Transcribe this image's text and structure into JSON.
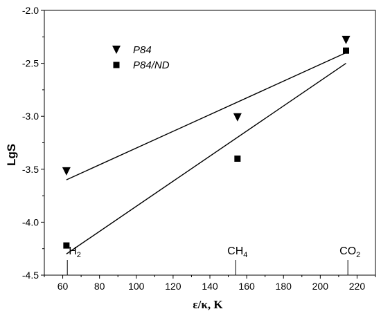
{
  "chart_data": {
    "type": "scatter",
    "title": "",
    "xlabel": "ε/κ, K",
    "ylabel": "LgS",
    "xlim": [
      50,
      230
    ],
    "ylim": [
      -4.5,
      -2.0
    ],
    "x_ticks": [
      60,
      80,
      100,
      120,
      140,
      160,
      180,
      200,
      220
    ],
    "y_ticks": [
      -2.0,
      -2.5,
      -3.0,
      -3.5,
      -4.0,
      -4.5
    ],
    "x_tick_labels": [
      "60",
      "80",
      "100",
      "120",
      "140",
      "160",
      "180",
      "200",
      "220"
    ],
    "y_tick_labels": [
      "-2.0",
      "-2.5",
      "-3.0",
      "-3.5",
      "-4.0",
      "-4.5"
    ],
    "grid": false,
    "legend_position": "top-left",
    "series": [
      {
        "name": "P84",
        "marker": "triangle-down",
        "color": "#000000",
        "x": [
          62,
          155,
          214
        ],
        "y": [
          -3.52,
          -3.01,
          -2.28
        ],
        "fit": {
          "x": [
            62,
            214
          ],
          "y": [
            -3.6,
            -2.4
          ]
        }
      },
      {
        "name": "P84/ND",
        "marker": "square",
        "color": "#000000",
        "x": [
          62,
          155,
          214
        ],
        "y": [
          -4.22,
          -3.4,
          -2.38
        ],
        "fit": {
          "x": [
            62,
            214
          ],
          "y": [
            -4.3,
            -2.5
          ]
        }
      }
    ],
    "annotations": [
      {
        "base": "H",
        "sub": "2",
        "x": 62.5
      },
      {
        "base": "CH",
        "sub": "4",
        "x": 154
      },
      {
        "base": "CO",
        "sub": "2",
        "x": 215
      }
    ]
  }
}
